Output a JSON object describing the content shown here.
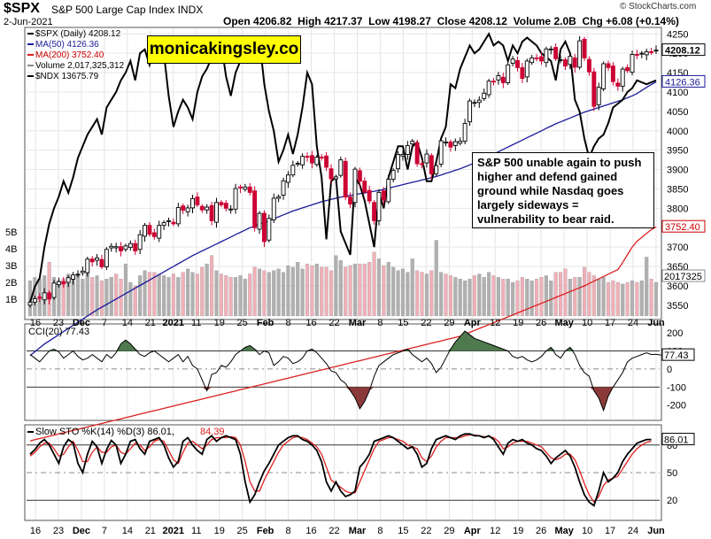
{
  "header": {
    "symbol": "$SPX",
    "name": "S&P 500 Large Cap Index",
    "exchange": "INDX",
    "date": "2-Jun-2021",
    "open_label": "Open",
    "open": "4206.82",
    "high_label": "High",
    "high": "4217.37",
    "low_label": "Low",
    "low": "4198.27",
    "close_label": "Close",
    "close": "4208.12",
    "volume_label": "Volume",
    "volume": "2.0B",
    "chg_label": "Chg",
    "chg": "+6.08 (+0.14%)",
    "copyright": "© StockCharts.com"
  },
  "banner": "monicakingsley.co",
  "annotation": "S&P 500 unable again to push higher and defend gained ground  while Nasdaq goes largely sideways = vulnerability to bear raid.",
  "colors": {
    "up": "#000000",
    "down": "#cc0033",
    "ma50": "#1a1a9a",
    "ma200": "#dd2020",
    "ndx": "#000000",
    "vol": "#b0b0b0",
    "volDown": "#f0b0b8",
    "ccifill": "#4e7a4e",
    "ccineg": "#8b3a3a",
    "k": "#000000",
    "d": "#dd2020"
  },
  "chart_data": [
    {
      "type": "candlestick",
      "title": "$SPX (Daily) 4208.12",
      "legend": [
        {
          "label": "$SPX (Daily) 4208.12",
          "color": "#000000"
        },
        {
          "label": "MA(50) 4126.36",
          "color": "#1a1a9a"
        },
        {
          "label": "MA(200) 3752.40",
          "color": "#dd2020"
        },
        {
          "label": "Volume 2,017,325,312",
          "color": "#888888"
        },
        {
          "label": "$NDX 13675.79",
          "color": "#000000"
        }
      ],
      "x_labels": [
        "16",
        "23",
        "Dec",
        "7",
        "14",
        "21",
        "2021",
        "11",
        "19",
        "25",
        "Feb",
        "8",
        "16",
        "22",
        "Mar",
        "8",
        "15",
        "22",
        "29",
        "Apr",
        "12",
        "19",
        "26",
        "May",
        "10",
        "17",
        "24",
        "Jun"
      ],
      "y_ticks": [
        "4250",
        "4200",
        "4150",
        "4100",
        "4050",
        "4000",
        "3950",
        "3900",
        "3850",
        "3800",
        "3750",
        "3700",
        "3650",
        "3600",
        "3550"
      ],
      "volume_ticks": [
        "5B",
        "4B",
        "3B",
        "2B",
        "1B"
      ],
      "value_labels": {
        "close": "4208.12",
        "ma50": "4126.36",
        "ma200": "3752.40",
        "volume": "2017325"
      },
      "ylim": [
        3520,
        4262
      ],
      "closes": [
        3558,
        3567,
        3568,
        3582,
        3566,
        3607,
        3611,
        3605,
        3621,
        3628,
        3630,
        3638,
        3669,
        3662,
        3672,
        3649,
        3694,
        3702,
        3701,
        3690,
        3703,
        3709,
        3690,
        3732,
        3756,
        3733,
        3727,
        3756,
        3763,
        3768,
        3760,
        3802,
        3795,
        3801,
        3825,
        3809,
        3796,
        3803,
        3768,
        3815,
        3809,
        3800,
        3798,
        3851,
        3853,
        3855,
        3841,
        3750,
        3787,
        3714,
        3774,
        3826,
        3830,
        3871,
        3886,
        3911,
        3916,
        3934,
        3932,
        3917,
        3932,
        3931,
        3906,
        3876,
        3881,
        3925,
        3829,
        3811,
        3901,
        3870,
        3842,
        3819,
        3768,
        3841,
        3821,
        3875,
        3898,
        3939,
        3939,
        3962,
        3973,
        3915,
        3913,
        3940,
        3889,
        3910,
        3974,
        3971,
        3958,
        3972,
        3973,
        4019,
        4077,
        4073,
        4079,
        4097,
        4128,
        4127,
        4142,
        4124,
        4170,
        4185,
        4163,
        4135,
        4180,
        4188,
        4187,
        4180,
        4211,
        4211,
        4186,
        4183,
        4167,
        4192,
        4164,
        4232,
        4188,
        4152,
        4063,
        4112,
        4173,
        4163,
        4127,
        4115,
        4159,
        4155,
        4197,
        4195,
        4200,
        4204,
        4202,
        4208
      ],
      "ma50": [
        3420,
        3430,
        3440,
        3450,
        3458,
        3466,
        3474,
        3482,
        3490,
        3498,
        3506,
        3514,
        3522,
        3530,
        3538,
        3545,
        3552,
        3559,
        3566,
        3573,
        3580,
        3587,
        3594,
        3601,
        3608,
        3615,
        3622,
        3629,
        3636,
        3643,
        3650,
        3657,
        3664,
        3671,
        3678,
        3684,
        3690,
        3696,
        3702,
        3708,
        3714,
        3720,
        3726,
        3732,
        3738,
        3744,
        3750,
        3754,
        3759,
        3763,
        3768,
        3773,
        3778,
        3783,
        3788,
        3793,
        3797,
        3801,
        3805,
        3809,
        3813,
        3817,
        3820,
        3823,
        3826,
        3829,
        3831,
        3833,
        3835,
        3838,
        3840,
        3842,
        3844,
        3846,
        3849,
        3852,
        3855,
        3858,
        3861,
        3864,
        3867,
        3870,
        3873,
        3876,
        3879,
        3882,
        3886,
        3890,
        3894,
        3898,
        3902,
        3907,
        3912,
        3917,
        3922,
        3928,
        3934,
        3940,
        3946,
        3952,
        3958,
        3964,
        3970,
        3976,
        3982,
        3988,
        3994,
        4000,
        4006,
        4012,
        4018,
        4023,
        4028,
        4033,
        4038,
        4043,
        4048,
        4052,
        4056,
        4060,
        4064,
        4068,
        4072,
        4076,
        4080,
        4085,
        4090,
        4096,
        4104,
        4112,
        4119,
        4126
      ],
      "ma200": [
        3200,
        3203,
        3206,
        3209,
        3212,
        3215,
        3218,
        3221,
        3224,
        3227,
        3230,
        3233,
        3236,
        3239,
        3242,
        3245,
        3248,
        3251,
        3254,
        3257,
        3260,
        3263,
        3266,
        3269,
        3272,
        3275,
        3278,
        3281,
        3284,
        3287,
        3290,
        3293,
        3296,
        3299,
        3302,
        3305,
        3308,
        3311,
        3314,
        3317,
        3320,
        3323,
        3326,
        3329,
        3332,
        3335,
        3338,
        3341,
        3344,
        3347,
        3350,
        3353,
        3356,
        3359,
        3362,
        3365,
        3368,
        3371,
        3374,
        3377,
        3380,
        3383,
        3386,
        3389,
        3392,
        3395,
        3398,
        3401,
        3404,
        3407,
        3410,
        3413,
        3416,
        3419,
        3422,
        3425,
        3428,
        3431,
        3434,
        3437,
        3440,
        3443,
        3446,
        3449,
        3452,
        3455,
        3458,
        3461,
        3464,
        3467,
        3470,
        3475,
        3480,
        3485,
        3490,
        3495,
        3500,
        3505,
        3510,
        3515,
        3520,
        3525,
        3530,
        3535,
        3540,
        3545,
        3550,
        3555,
        3560,
        3565,
        3570,
        3575,
        3580,
        3585,
        3590,
        3595,
        3600,
        3606,
        3612,
        3618,
        3624,
        3630,
        3636,
        3642,
        3660,
        3680,
        3700,
        3715,
        3725,
        3735,
        3745,
        3752
      ],
      "ndx": [
        3558,
        3598,
        3620,
        3700,
        3760,
        3800,
        3830,
        3870,
        3840,
        3880,
        3930,
        3960,
        3990,
        4010,
        4030,
        3990,
        4060,
        4080,
        4100,
        4130,
        4150,
        4180,
        4130,
        4200,
        4210,
        4170,
        4210,
        4230,
        4200,
        4090,
        4010,
        4050,
        4080,
        4060,
        4030,
        4100,
        4140,
        4160,
        4190,
        4220,
        4225,
        4140,
        4090,
        4150,
        4180,
        4200,
        4210,
        4230,
        4235,
        4120,
        4050,
        4000,
        3920,
        3950,
        3990,
        3940,
        3990,
        4060,
        4150,
        4120,
        3960,
        3880,
        3720,
        3870,
        3880,
        3740,
        3710,
        3680,
        3880,
        3860,
        3820,
        3760,
        3700,
        3840,
        3800,
        3880,
        3920,
        3960,
        3960,
        3900,
        3960,
        3970,
        3930,
        3870,
        3870,
        3920,
        3980,
        4010,
        4120,
        4110,
        4160,
        4190,
        4220,
        4200,
        4210,
        4230,
        4250,
        4220,
        4230,
        4220,
        4180,
        4220,
        4200,
        4230,
        4240,
        4230,
        4220,
        4200,
        4190,
        4180,
        4130,
        4210,
        4230,
        4200,
        4080,
        4050,
        3980,
        3930,
        3960,
        3980,
        3990,
        4020,
        4060,
        4070,
        4080,
        4100,
        4110,
        4130,
        4125,
        4120,
        4125,
        4130
      ],
      "volume_index": [
        2.1,
        2.3,
        2.2,
        2.4,
        3.2,
        2.3,
        2.1,
        2.2,
        2.5,
        2.3,
        2.4,
        2.2,
        2.6,
        2.3,
        2.4,
        2.1,
        2.2,
        2.3,
        2.5,
        2.2,
        3.1,
        2.0,
        1.8,
        2.4,
        2.7,
        2.6,
        2.6,
        2.5,
        2.4,
        2.3,
        2.5,
        2.3,
        2.6,
        2.8,
        2.6,
        2.5,
        2.9,
        3.1,
        3.6,
        2.7,
        2.5,
        2.4,
        2.3,
        2.3,
        2.4,
        2.2,
        2.5,
        2.9,
        2.8,
        2.7,
        2.6,
        2.7,
        2.8,
        2.6,
        3.0,
        2.9,
        3.2,
        2.8,
        3.1,
        3.0,
        3.1,
        2.9,
        2.9,
        2.7,
        3.6,
        3.3,
        2.9,
        3.0,
        3.1,
        3.1,
        3.1,
        3.2,
        3.8,
        3.4,
        3.0,
        3.2,
        2.9,
        2.7,
        2.8,
        2.6,
        3.4,
        2.7,
        2.6,
        2.5,
        2.7,
        4.5,
        2.6,
        2.5,
        2.4,
        2.3,
        2.2,
        2.1,
        2.2,
        2.4,
        2.5,
        2.3,
        2.6,
        2.4,
        2.3,
        2.2,
        2.2,
        2.0,
        2.1,
        2.3,
        2.2,
        2.1,
        2.2,
        2.3,
        2.4,
        2.1,
        2.6,
        2.6,
        2.8,
        2.2,
        2.3,
        2.3,
        2.9,
        2.6,
        2.4,
        2.2,
        2.3,
        2.0,
        2.1,
        2.0,
        1.9,
        2.0,
        2.1,
        2.0,
        2.1,
        3.5,
        2.2,
        2.0
      ]
    },
    {
      "type": "line",
      "title": "CCI(20) 77.43",
      "y_ticks": [
        "200",
        "100",
        "0",
        "-100",
        "-200"
      ],
      "value_label": "77.43",
      "ylim": [
        -275,
        240
      ],
      "values": [
        80,
        60,
        40,
        70,
        100,
        110,
        95,
        60,
        80,
        100,
        70,
        50,
        60,
        80,
        60,
        40,
        80,
        60,
        90,
        140,
        160,
        140,
        110,
        80,
        70,
        90,
        100,
        80,
        60,
        40,
        60,
        80,
        40,
        70,
        20,
        0,
        -60,
        -120,
        -30,
        -20,
        20,
        10,
        40,
        80,
        100,
        120,
        130,
        110,
        80,
        100,
        90,
        20,
        40,
        70,
        60,
        30,
        40,
        60,
        100,
        110,
        90,
        60,
        30,
        -10,
        -20,
        -60,
        -80,
        -120,
        -160,
        -220,
        -180,
        -120,
        -40,
        20,
        40,
        60,
        80,
        90,
        100,
        110,
        80,
        60,
        40,
        60,
        30,
        -20,
        10,
        60,
        110,
        150,
        180,
        210,
        190,
        170,
        160,
        150,
        140,
        130,
        120,
        110,
        100,
        70,
        60,
        70,
        50,
        40,
        50,
        70,
        100,
        120,
        80,
        60,
        100,
        120,
        80,
        20,
        -20,
        -40,
        -120,
        -160,
        -230,
        -150,
        -100,
        -60,
        -20,
        40,
        60,
        70,
        80,
        90,
        80,
        82,
        77
      ]
    },
    {
      "type": "line",
      "title": "Slow STO %K(14) %D(3) 86.01, 84.39",
      "legend": [
        {
          "label": "Slow STO %K(14) %D(3) 86.01,",
          "color": "#000000"
        },
        {
          "label": "84.39",
          "color": "#dd2020"
        }
      ],
      "y_ticks": [
        "80",
        "50",
        "20"
      ],
      "value_label": "86.01",
      "ylim": [
        0,
        100
      ],
      "k": [
        70,
        75,
        82,
        86,
        80,
        70,
        60,
        78,
        86,
        82,
        60,
        50,
        70,
        84,
        78,
        60,
        75,
        85,
        80,
        60,
        70,
        84,
        86,
        76,
        70,
        84,
        86,
        88,
        80,
        66,
        56,
        62,
        84,
        88,
        80,
        74,
        70,
        86,
        90,
        84,
        88,
        90,
        88,
        86,
        70,
        40,
        18,
        26,
        40,
        52,
        60,
        70,
        80,
        84,
        88,
        90,
        90,
        86,
        84,
        80,
        74,
        62,
        40,
        30,
        40,
        30,
        24,
        26,
        30,
        56,
        62,
        70,
        84,
        86,
        88,
        90,
        88,
        84,
        80,
        76,
        78,
        70,
        56,
        60,
        76,
        86,
        88,
        90,
        88,
        86,
        90,
        92,
        92,
        90,
        90,
        88,
        90,
        86,
        78,
        70,
        82,
        86,
        84,
        86,
        82,
        80,
        76,
        74,
        68,
        60,
        66,
        70,
        74,
        68,
        56,
        40,
        26,
        18,
        14,
        30,
        50,
        40,
        44,
        50,
        62,
        70,
        76,
        82,
        84,
        86,
        86
      ],
      "d": [
        68,
        72,
        78,
        82,
        82,
        76,
        68,
        70,
        78,
        84,
        74,
        62,
        62,
        72,
        78,
        72,
        72,
        78,
        80,
        72,
        70,
        76,
        82,
        80,
        74,
        78,
        84,
        86,
        84,
        74,
        64,
        60,
        72,
        82,
        84,
        80,
        76,
        80,
        86,
        88,
        88,
        88,
        89,
        88,
        80,
        62,
        40,
        30,
        30,
        42,
        52,
        62,
        72,
        80,
        84,
        88,
        89,
        88,
        86,
        82,
        78,
        70,
        56,
        42,
        38,
        34,
        30,
        28,
        28,
        40,
        52,
        64,
        76,
        84,
        86,
        88,
        88,
        86,
        84,
        80,
        78,
        76,
        66,
        62,
        68,
        78,
        84,
        88,
        88,
        88,
        88,
        90,
        91,
        91,
        90,
        89,
        89,
        88,
        84,
        76,
        78,
        82,
        84,
        84,
        84,
        82,
        80,
        78,
        72,
        66,
        64,
        66,
        70,
        70,
        64,
        52,
        38,
        26,
        18,
        24,
        36,
        42,
        44,
        46,
        54,
        62,
        70,
        76,
        80,
        83,
        84
      ]
    }
  ]
}
